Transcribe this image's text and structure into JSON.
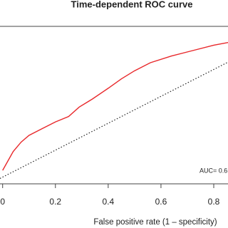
{
  "chart_data": {
    "type": "line",
    "title": "Time-dependent ROC curve",
    "x_label": "False positive rate (1 – specificity)",
    "annotation": "AUC= 0.6",
    "x": [
      0,
      0.02,
      0.04,
      0.07,
      0.1,
      0.15,
      0.2,
      0.25,
      0.29,
      0.34,
      0.4,
      0.45,
      0.5,
      0.56,
      0.64,
      0.72,
      0.8,
      0.854
    ],
    "series": [
      {
        "name": "ROC",
        "color": "#e8282b",
        "values": [
          0.05,
          0.12,
          0.19,
          0.26,
          0.31,
          0.36,
          0.41,
          0.45,
          0.52,
          0.58,
          0.66,
          0.73,
          0.79,
          0.85,
          0.9,
          0.94,
          0.98,
          1.0
        ]
      }
    ],
    "diagonal": true,
    "xlim": [
      -0.01,
      0.854
    ],
    "ylim": [
      -0.05,
      1.12
    ],
    "xticks": [
      {
        "value": 0,
        "label": "0"
      },
      0.2,
      0.4,
      0.6,
      0.8
    ]
  }
}
